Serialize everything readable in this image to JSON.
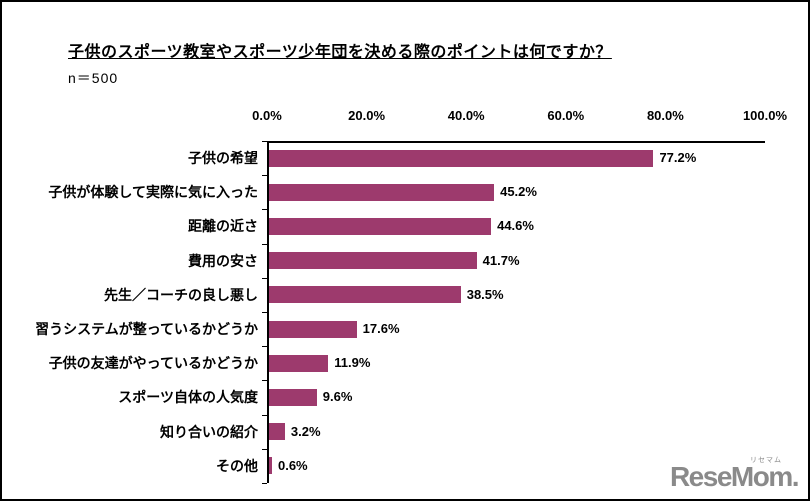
{
  "header": {
    "title": "子供のスポーツ教室やスポーツ少年団を決める際のポイントは何ですか？",
    "sample_size": "n＝500"
  },
  "chart_data": {
    "type": "bar",
    "orientation": "horizontal",
    "title": "子供のスポーツ教室やスポーツ少年団を決める際のポイントは何ですか？",
    "subtitle": "n＝500",
    "categories": [
      "子供の希望",
      "子供が体験して実際に気に入った",
      "距離の近さ",
      "費用の安さ",
      "先生／コーチの良し悪し",
      "習うシステムが整っているかどうか",
      "子供の友達がやっているかどうか",
      "スポーツ自体の人気度",
      "知り合いの紹介",
      "その他"
    ],
    "values": [
      77.2,
      45.2,
      44.6,
      41.7,
      38.5,
      17.6,
      11.9,
      9.6,
      3.2,
      0.6
    ],
    "value_labels": [
      "77.2%",
      "45.2%",
      "44.6%",
      "41.7%",
      "38.5%",
      "17.6%",
      "11.9%",
      "9.6%",
      "3.2%",
      "0.6%"
    ],
    "xlabel": "",
    "ylabel": "",
    "xlim": [
      0,
      100
    ],
    "x_tick_labels": [
      "0.0%",
      "20.0%",
      "40.0%",
      "60.0%",
      "80.0%",
      "100.0%"
    ],
    "x_tick_values": [
      0,
      20,
      40,
      60,
      80,
      100
    ],
    "axis_labels_position": "top",
    "grid": false,
    "legend": "none",
    "bar_color": "#9D3A6D",
    "axis_color": "#000000",
    "text_color": "#000000"
  },
  "branding": {
    "logo_text": "ReseMom",
    "logo_suffix": ".",
    "logo_ruby": "リセマム",
    "logo_color": "#8a8a8a"
  }
}
